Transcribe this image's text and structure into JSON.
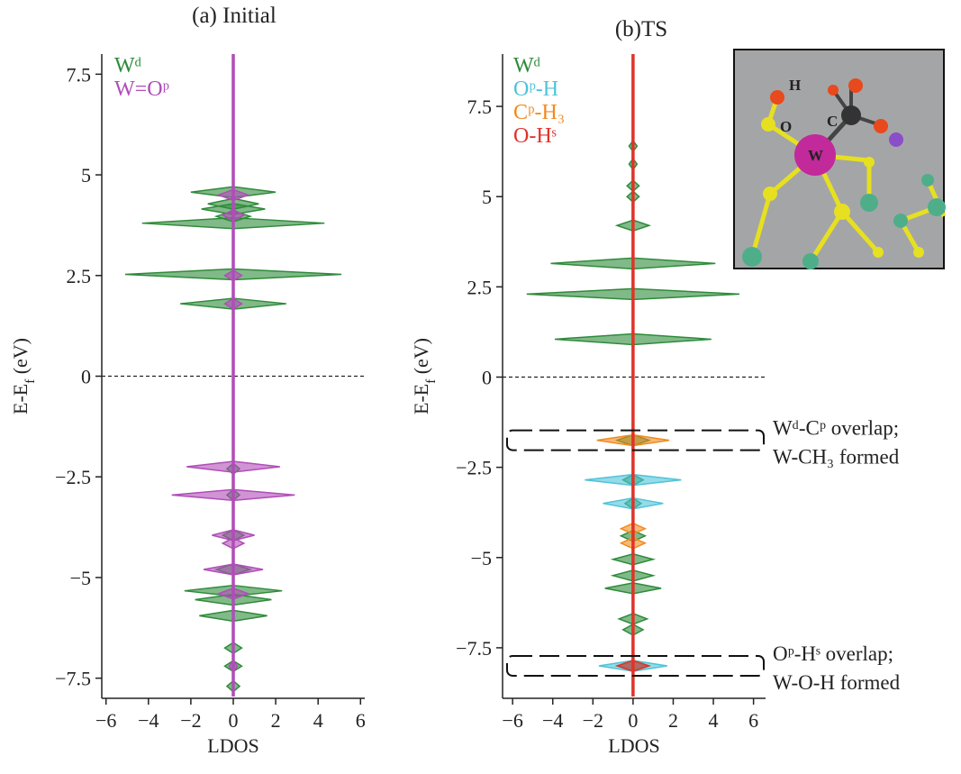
{
  "chart_data": [
    {
      "type": "ldos",
      "title": "(a) Initial",
      "xlabel": "LDOS",
      "ylabel": [
        "E-E",
        "f",
        " (eV)"
      ],
      "xlim": [
        -6.2,
        6.2
      ],
      "ylim": [
        -8,
        8
      ],
      "xticks": [
        {
          "value": -6,
          "label": "−6"
        },
        {
          "value": -4,
          "label": "−4"
        },
        {
          "value": -2,
          "label": "−2"
        },
        0,
        2,
        4,
        6
      ],
      "yticks": [
        7.5,
        5,
        2.5,
        0,
        {
          "value": -2.5,
          "label": "−2.5"
        },
        {
          "value": -5,
          "label": "−5"
        },
        {
          "value": -7.5,
          "label": "−7.5"
        }
      ],
      "series": [
        {
          "name": "Wᵈ",
          "color": "#2e8b3a",
          "energies": [
            4.57,
            4.28,
            4.15,
            3.97,
            3.8,
            2.53,
            1.8,
            -2.3,
            -2.95,
            -3.95,
            -4.8,
            -5.33,
            -5.55,
            -5.95,
            -6.75,
            -7.2,
            -7.7
          ],
          "values": [
            2.0,
            1.2,
            1.5,
            0.8,
            4.3,
            5.1,
            2.5,
            0.3,
            0.3,
            0.5,
            0.8,
            2.3,
            1.8,
            1.6,
            0.4,
            0.4,
            0.3
          ]
        },
        {
          "name": "W=Oᵖ",
          "color": "#b04db8",
          "energies": [
            4.5,
            4.0,
            2.5,
            1.8,
            -2.25,
            -2.95,
            -3.95,
            -4.15,
            -4.8,
            -5.4,
            -7.2
          ],
          "values": [
            0.7,
            0.5,
            0.4,
            0.4,
            2.2,
            2.9,
            1.0,
            0.5,
            1.4,
            0.7,
            0.2
          ]
        }
      ]
    },
    {
      "type": "ldos",
      "title": "(b)TS",
      "xlabel": "LDOS",
      "ylabel": [
        "E-E",
        "f",
        " (eV)"
      ],
      "xlim": [
        -6.5,
        6.6
      ],
      "ylim": [
        -8.9,
        8.95
      ],
      "xticks": [
        {
          "value": -6,
          "label": "−6"
        },
        {
          "value": -4,
          "label": "−4"
        },
        {
          "value": -2,
          "label": "−2"
        },
        0,
        2,
        4,
        6
      ],
      "yticks": [
        7.5,
        5,
        2.5,
        0,
        {
          "value": -2.5,
          "label": "−2.5"
        },
        {
          "value": -5,
          "label": "−5"
        },
        {
          "value": -7.5,
          "label": "−7.5"
        }
      ],
      "series": [
        {
          "name": "Wᵈ",
          "color": "#2e8b3a",
          "energies": [
            6.4,
            5.9,
            5.3,
            5.0,
            4.2,
            3.15,
            2.3,
            1.05,
            -1.75,
            -2.85,
            -3.5,
            -4.4,
            -5.05,
            -5.5,
            -5.85,
            -6.7,
            -7.0,
            -8.0
          ],
          "values": [
            0.2,
            0.2,
            0.3,
            0.3,
            0.8,
            4.1,
            5.3,
            3.9,
            0.8,
            0.5,
            0.4,
            0.6,
            1.0,
            1.0,
            1.4,
            0.7,
            0.5,
            0.7
          ]
        },
        {
          "name": "Oᵖ-H",
          "color": "#4fc3d9",
          "energies": [
            -2.85,
            -3.5,
            -8.0
          ],
          "values": [
            2.4,
            1.5,
            1.7
          ]
        },
        {
          "name": "Cᵖ-H₃",
          "color": "#f28a1e",
          "energies": [
            -1.75,
            -4.2,
            -4.6
          ],
          "values": [
            1.8,
            0.6,
            0.6
          ]
        },
        {
          "name": "O-Hˢ",
          "color": "#e0332a",
          "energies": [
            -8.0
          ],
          "values": [
            0.8
          ]
        }
      ],
      "annotations": [
        [
          "Wᵈ-Cᵖ overlap;",
          "W-CH₃ formed"
        ],
        [
          "Oᵖ-Hˢ overlap;",
          "W-O-H formed"
        ]
      ],
      "inset_labels": [
        "H",
        "O",
        "C",
        "W"
      ]
    }
  ]
}
